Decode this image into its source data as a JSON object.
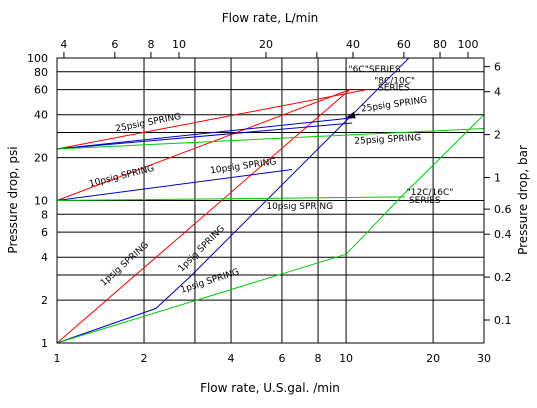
{
  "chart_data": {
    "type": "line",
    "title": "",
    "xlabel": "Flow rate, U.S.gal. /min",
    "ylabel": "Pressure drop, psi",
    "x2label": "Flow rate, L/min",
    "y2label": "Pressure drop, bar",
    "x_scale": "log",
    "y_scale": "log",
    "xlim": [
      1,
      30
    ],
    "ylim": [
      1,
      100
    ],
    "grid": true,
    "legend": "none",
    "x_ticks": [
      1,
      2,
      3,
      4,
      6,
      8,
      10,
      20,
      30
    ],
    "x_tick_labels": [
      "1",
      "2",
      "",
      "4",
      "6",
      "8",
      "10",
      "20",
      "30"
    ],
    "y_ticks": [
      1,
      2,
      3,
      4,
      6,
      8,
      10,
      20,
      30,
      40,
      60,
      80,
      100
    ],
    "y_tick_labels": [
      "1",
      "2",
      "",
      "4",
      "6",
      "8",
      "10",
      "20",
      "",
      "40",
      "60",
      "80",
      "100"
    ],
    "x2_ticks": [
      4,
      6,
      8,
      10,
      20,
      30,
      40,
      60,
      80,
      100
    ],
    "x2_tick_labels": [
      "4",
      "6",
      "8",
      "10",
      "20",
      "",
      "40",
      "60",
      "80",
      "100"
    ],
    "y2_ticks": [
      0.1,
      0.2,
      0.4,
      0.6,
      1,
      2,
      4,
      6
    ],
    "y2_tick_labels": [
      "0.1",
      "0.2",
      "0.4",
      "0.6",
      "1",
      "2",
      "4",
      "6"
    ],
    "colors": {
      "red": "#ff0000",
      "blue": "#0000cc",
      "green": "#00cc00"
    },
    "series": [
      {
        "color": "red",
        "x": [
          1,
          10.3
        ],
        "y": [
          1,
          60
        ]
      },
      {
        "color": "red",
        "x": [
          1,
          10.3
        ],
        "y": [
          10,
          60
        ]
      },
      {
        "color": "red",
        "x": [
          1,
          11.8
        ],
        "y": [
          23,
          60
        ]
      },
      {
        "color": "blue",
        "x": [
          1,
          2.2,
          2.9,
          10.5,
          16.5
        ],
        "y": [
          1,
          1.75,
          2.95,
          40,
          100
        ]
      },
      {
        "color": "blue",
        "x": [
          1,
          6.5
        ],
        "y": [
          10,
          16.5
        ]
      },
      {
        "color": "blue",
        "x": [
          1,
          10.5
        ],
        "y": [
          23,
          38
        ]
      },
      {
        "color": "blue",
        "x": [
          1,
          10.5
        ],
        "y": [
          23,
          35
        ]
      },
      {
        "color": "green",
        "x": [
          1,
          10
        ],
        "y": [
          1,
          4.2
        ]
      },
      {
        "color": "green",
        "x": [
          10,
          15.5,
          30
        ],
        "y": [
          4.2,
          10.6,
          40
        ]
      },
      {
        "color": "green",
        "x": [
          1,
          16
        ],
        "y": [
          10,
          10.6
        ]
      },
      {
        "color": "green",
        "x": [
          1,
          30
        ],
        "y": [
          23,
          32
        ]
      }
    ],
    "annotations": [
      {
        "text": "\"6C\"SERIES",
        "x": 10.2,
        "y": 80,
        "rotate": 0
      },
      {
        "text": "\"8C/10C\"",
        "x": 12.5,
        "y": 66,
        "rotate": 0
      },
      {
        "text": "SERIES",
        "x": 12.9,
        "y": 59,
        "rotate": 0
      },
      {
        "text": "25psig SPRING",
        "x": 1.6,
        "y": 30.5,
        "rotate": -11
      },
      {
        "text": "25psig SPRING",
        "x": 11.3,
        "y": 42,
        "rotate": -8
      },
      {
        "text": "25psig SPRING",
        "x": 10.7,
        "y": 25,
        "rotate": -3
      },
      {
        "text": "10psig SPRING",
        "x": 1.3,
        "y": 12.5,
        "rotate": -14
      },
      {
        "text": "10psig SPRING",
        "x": 3.4,
        "y": 15.5,
        "rotate": -8
      },
      {
        "text": "10psig SPRING",
        "x": 5.3,
        "y": 8.7,
        "rotate": 0
      },
      {
        "text": "\"12C/16C\"",
        "x": 16.2,
        "y": 10.9,
        "rotate": 0
      },
      {
        "text": "SERIES",
        "x": 16.5,
        "y": 9.6,
        "rotate": 0
      },
      {
        "text": "1psig SPRING",
        "x": 1.45,
        "y": 2.5,
        "rotate": -42
      },
      {
        "text": "1psig SPRING",
        "x": 2.7,
        "y": 3.15,
        "rotate": -45
      },
      {
        "text": "1psig SPRING",
        "x": 2.7,
        "y": 2.25,
        "rotate": -18
      }
    ]
  }
}
